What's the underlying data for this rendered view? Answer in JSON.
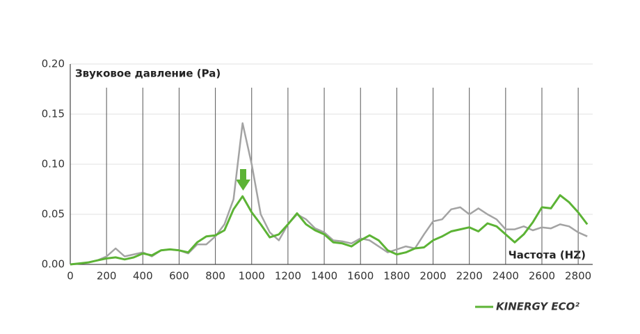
{
  "chart_data": {
    "type": "line",
    "y_label": "Звуковое давление (Pa)",
    "x_label": "Частота (HZ)",
    "x": [
      0,
      50,
      100,
      150,
      200,
      250,
      300,
      350,
      400,
      450,
      500,
      550,
      600,
      650,
      700,
      750,
      800,
      850,
      900,
      950,
      1000,
      1050,
      1100,
      1150,
      1200,
      1250,
      1300,
      1350,
      1400,
      1450,
      1500,
      1550,
      1600,
      1650,
      1700,
      1750,
      1800,
      1850,
      1900,
      1950,
      2000,
      2050,
      2100,
      2150,
      2200,
      2250,
      2300,
      2350,
      2400,
      2450,
      2500,
      2550,
      2600,
      2650,
      2700,
      2750,
      2800,
      2850
    ],
    "series": [
      {
        "color": "#a3a3a3",
        "values": [
          0,
          0.001,
          0.002,
          0.004,
          0.008,
          0.016,
          0.008,
          0.01,
          0.012,
          0.008,
          0.014,
          0.015,
          0.014,
          0.011,
          0.02,
          0.02,
          0.028,
          0.04,
          0.065,
          0.141,
          0.1,
          0.05,
          0.032,
          0.024,
          0.04,
          0.05,
          0.045,
          0.036,
          0.032,
          0.024,
          0.023,
          0.021,
          0.026,
          0.024,
          0.018,
          0.012,
          0.015,
          0.018,
          0.016,
          0.03,
          0.043,
          0.045,
          0.055,
          0.057,
          0.05,
          0.056,
          0.05,
          0.045,
          0.035,
          0.035,
          0.038,
          0.034,
          0.037,
          0.036,
          0.04,
          0.038,
          0.032,
          0.028
        ]
      },
      {
        "name": "KINERGY ECO²",
        "color": "#5cb335",
        "values": [
          0,
          0.001,
          0.002,
          0.004,
          0.006,
          0.007,
          0.005,
          0.007,
          0.011,
          0.009,
          0.014,
          0.015,
          0.014,
          0.012,
          0.022,
          0.028,
          0.029,
          0.034,
          0.055,
          0.068,
          0.052,
          0.04,
          0.027,
          0.03,
          0.04,
          0.051,
          0.04,
          0.034,
          0.03,
          0.022,
          0.021,
          0.018,
          0.024,
          0.029,
          0.024,
          0.014,
          0.01,
          0.012,
          0.016,
          0.017,
          0.024,
          0.028,
          0.033,
          0.035,
          0.037,
          0.033,
          0.041,
          0.038,
          0.03,
          0.022,
          0.03,
          0.042,
          0.057,
          0.056,
          0.069,
          0.062,
          0.052,
          0.04
        ]
      }
    ],
    "xlim": [
      0,
      2880
    ],
    "ylim": [
      0,
      0.2
    ],
    "xticks": [
      0,
      200,
      400,
      600,
      800,
      1000,
      1200,
      1400,
      1600,
      1800,
      2000,
      2200,
      2400,
      2600,
      2800
    ],
    "yticks": [
      {
        "value": 0,
        "label": "0.00"
      },
      {
        "value": 0.05,
        "label": "0.05"
      },
      {
        "value": 0.1,
        "label": "0.10"
      },
      {
        "value": 0.15,
        "label": "0.15"
      },
      {
        "value": 0.2,
        "label": "0.20"
      }
    ],
    "grid": true
  }
}
